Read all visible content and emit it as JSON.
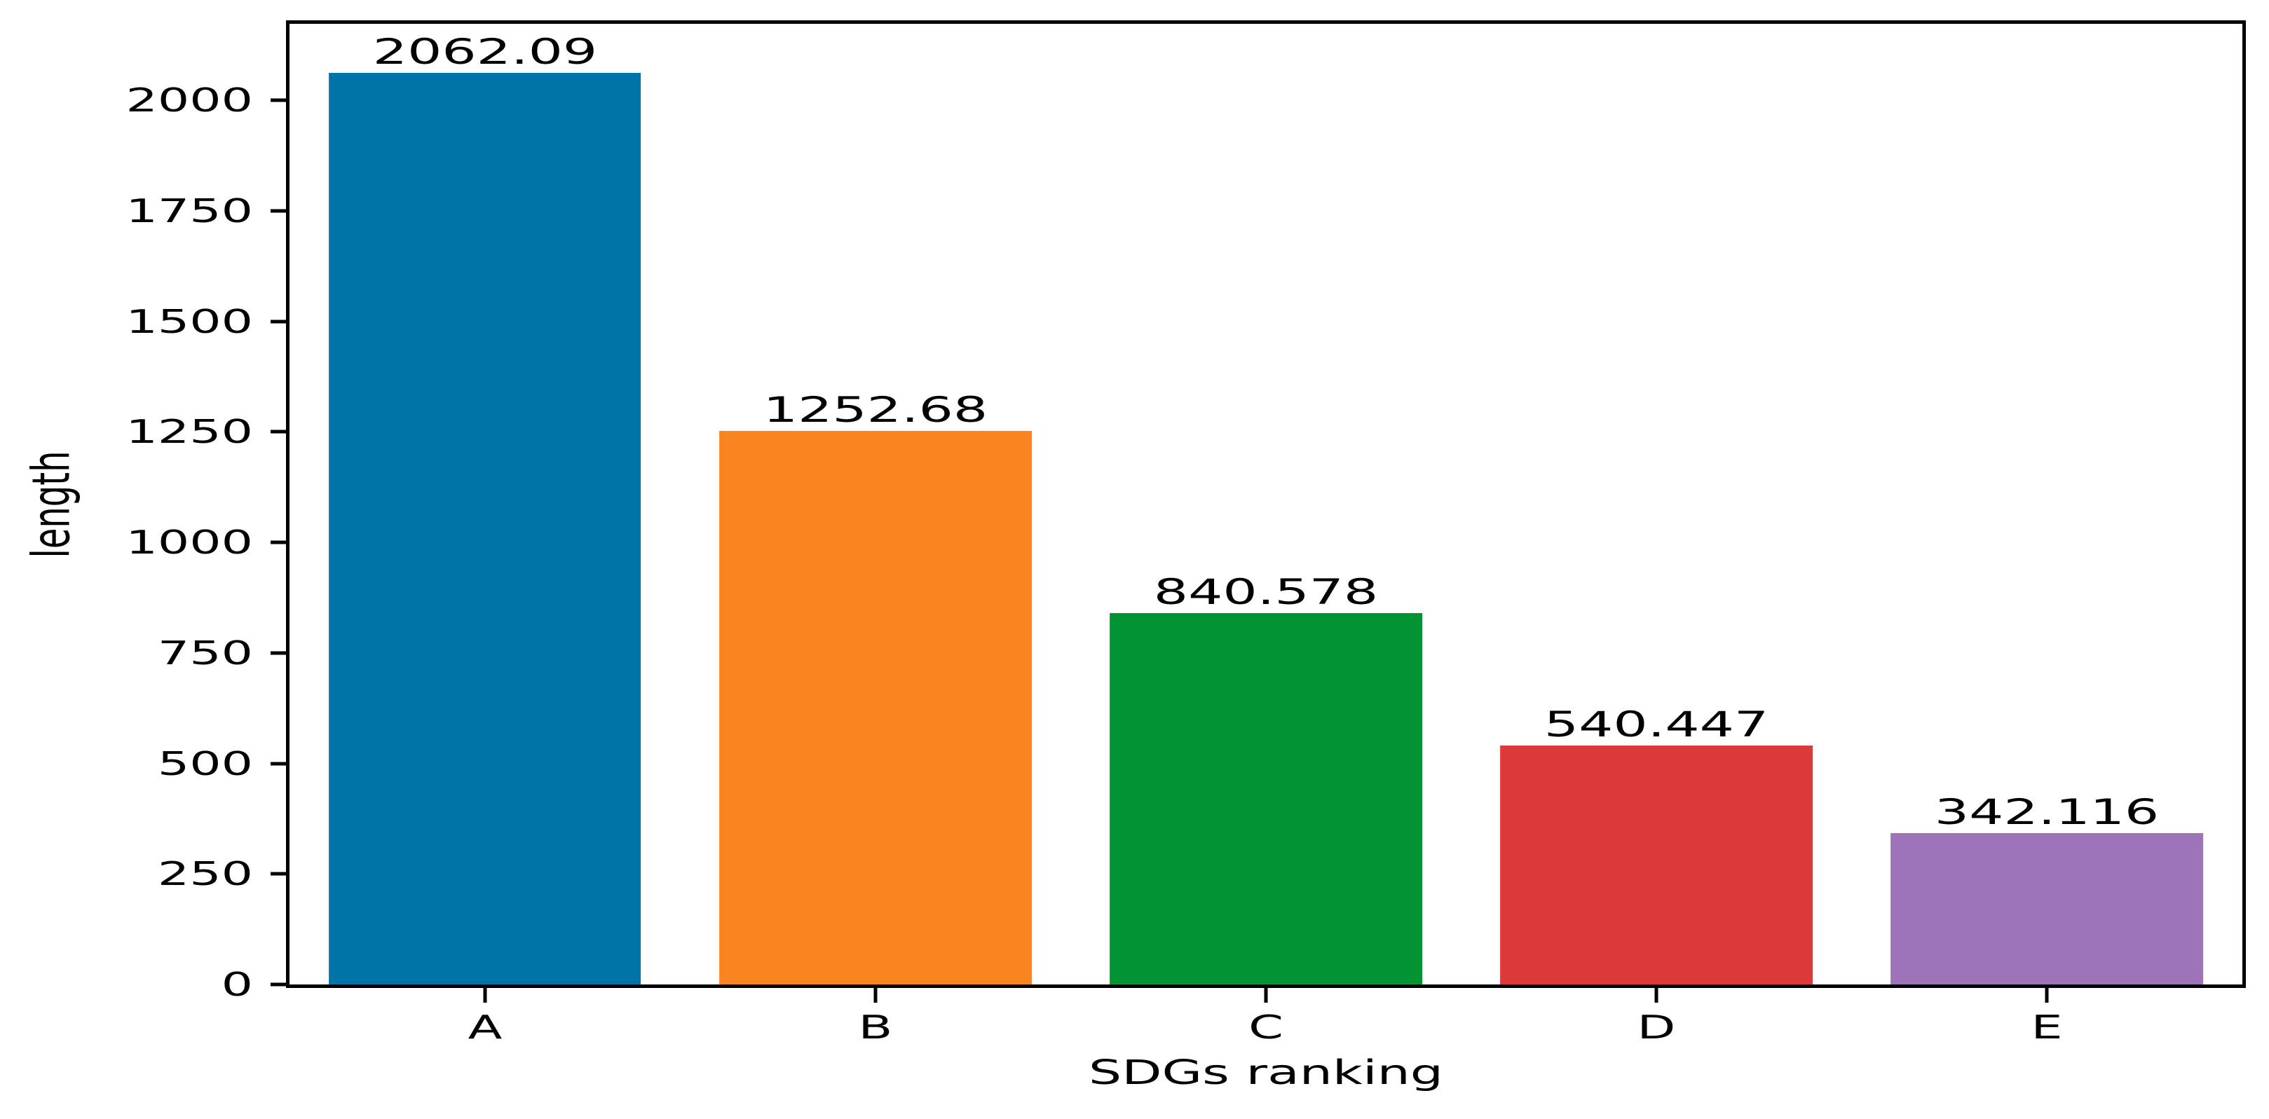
{
  "chart_data": {
    "type": "bar",
    "title": "",
    "xlabel": "SDGs ranking",
    "ylabel": "length",
    "categories": [
      "A",
      "B",
      "C",
      "D",
      "E"
    ],
    "values": [
      2062.09,
      1252.68,
      840.578,
      540.447,
      342.116
    ],
    "value_labels": [
      "2062.09",
      "1252.68",
      "840.578",
      "540.447",
      "342.116"
    ],
    "bar_colors": [
      "#0074a8",
      "#fa8420",
      "#029433",
      "#dc3a38",
      "#9d74b8"
    ],
    "y_ticks": {
      "values": [
        0,
        250,
        500,
        750,
        1000,
        1250,
        1500,
        1750,
        2000
      ],
      "labels": [
        "0",
        "250",
        "500",
        "750",
        "1000",
        "1250",
        "1500",
        "1750",
        "2000"
      ]
    },
    "ylim": [
      0,
      2173
    ],
    "bar_width_fraction": 0.8,
    "grid": false,
    "legend": false,
    "axis_color": "#000000",
    "text_color": "#000000",
    "background": "#ffffff"
  }
}
